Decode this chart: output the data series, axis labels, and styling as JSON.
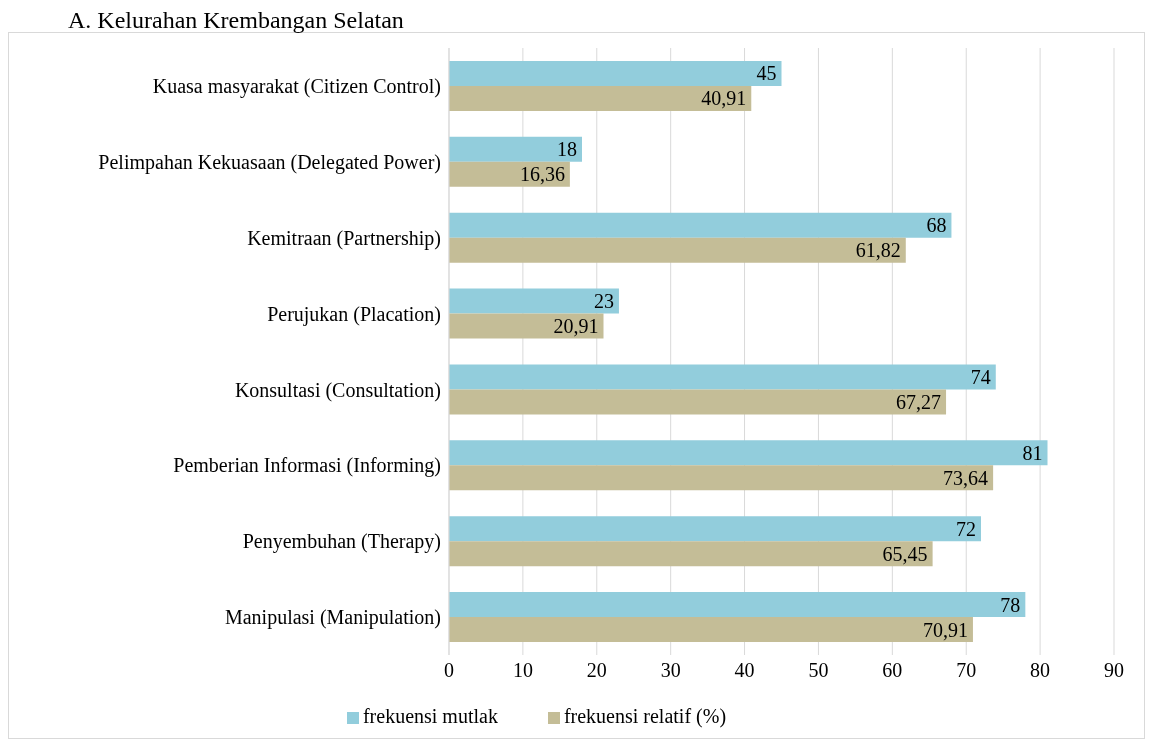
{
  "chart_data": {
    "type": "bar",
    "orientation": "horizontal",
    "title": "A. Kelurahan Krembangan Selatan",
    "categories": [
      "Kuasa masyarakat (Citizen Control)",
      "Pelimpahan Kekuasaan (Delegated Power)",
      "Kemitraan (Partnership)",
      "Perujukan (Placation)",
      "Konsultasi (Consultation)",
      "Pemberian Informasi (Informing)",
      "Penyembuhan (Therapy)",
      "Manipulasi (Manipulation)"
    ],
    "series": [
      {
        "name": "frekuensi mutlak",
        "color": "#92cddc",
        "values": [
          45,
          18,
          68,
          23,
          74,
          81,
          72,
          78
        ],
        "value_labels": [
          "45",
          "18",
          "68",
          "23",
          "74",
          "81",
          "72",
          "78"
        ]
      },
      {
        "name": "frekuensi relatif (%)",
        "color": "#c4bd97",
        "values": [
          40.91,
          16.36,
          61.82,
          20.91,
          67.27,
          73.64,
          65.45,
          70.91
        ],
        "value_labels": [
          "40,91",
          "16,36",
          "61,82",
          "20,91",
          "67,27",
          "73,64",
          "65,45",
          "70,91"
        ]
      }
    ],
    "xlim": [
      0,
      90
    ],
    "xticks": [
      0,
      10,
      20,
      30,
      40,
      50,
      60,
      70,
      80,
      90
    ],
    "grid": "x",
    "legend": "bottom"
  }
}
